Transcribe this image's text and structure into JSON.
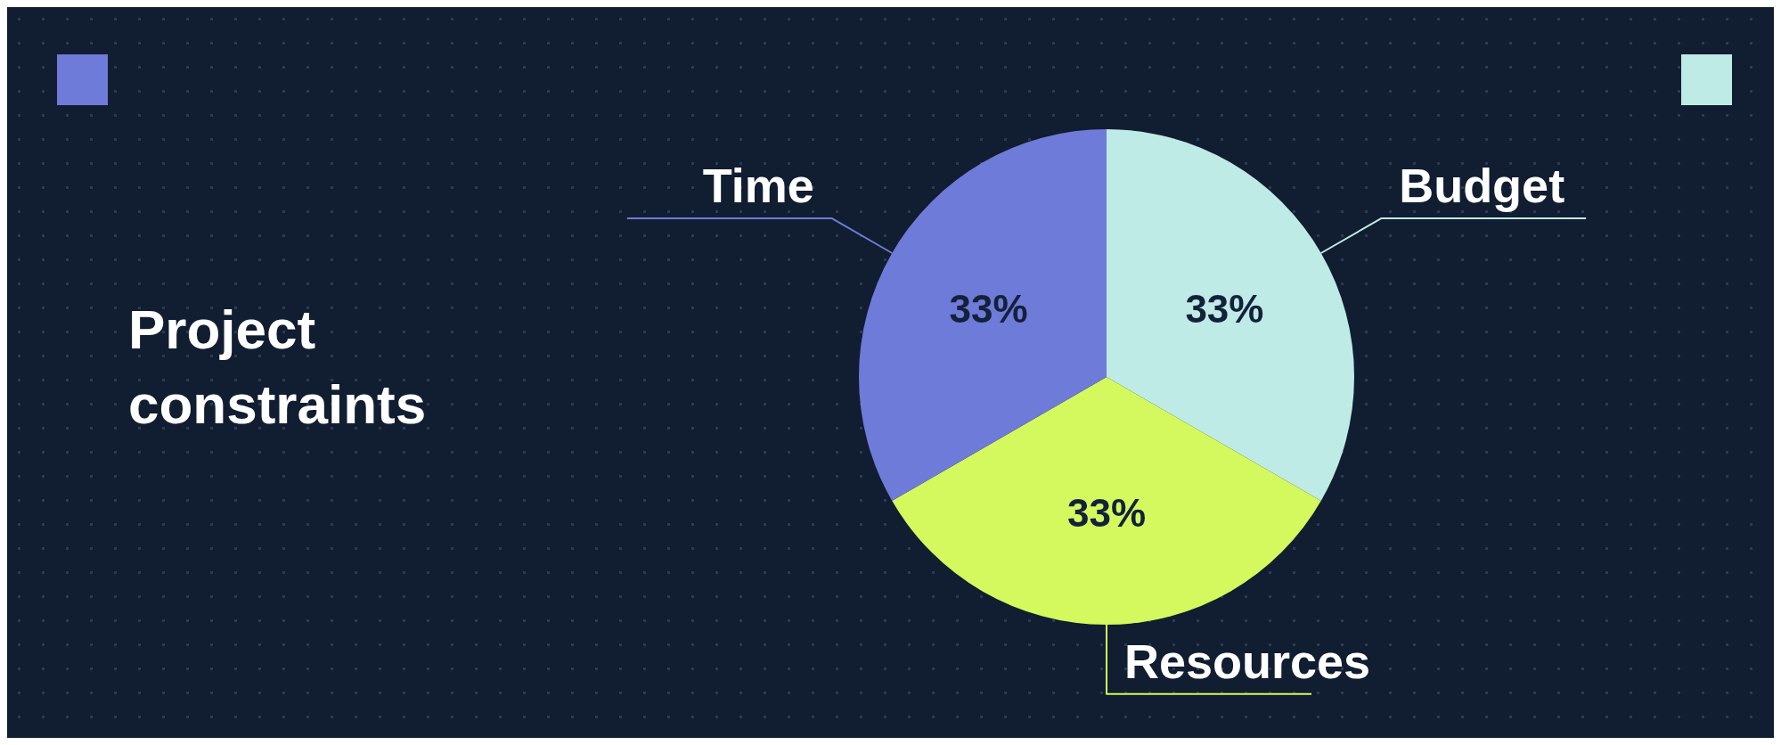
{
  "chart_data": {
    "type": "pie",
    "title": "Project constraints",
    "categories": [
      "Budget",
      "Resources",
      "Time"
    ],
    "values": [
      33,
      33,
      33
    ],
    "colors": [
      "#bfebe6",
      "#d4f95e",
      "#6f7bd8"
    ],
    "value_labels": [
      "33%",
      "33%",
      "33%"
    ]
  }
}
